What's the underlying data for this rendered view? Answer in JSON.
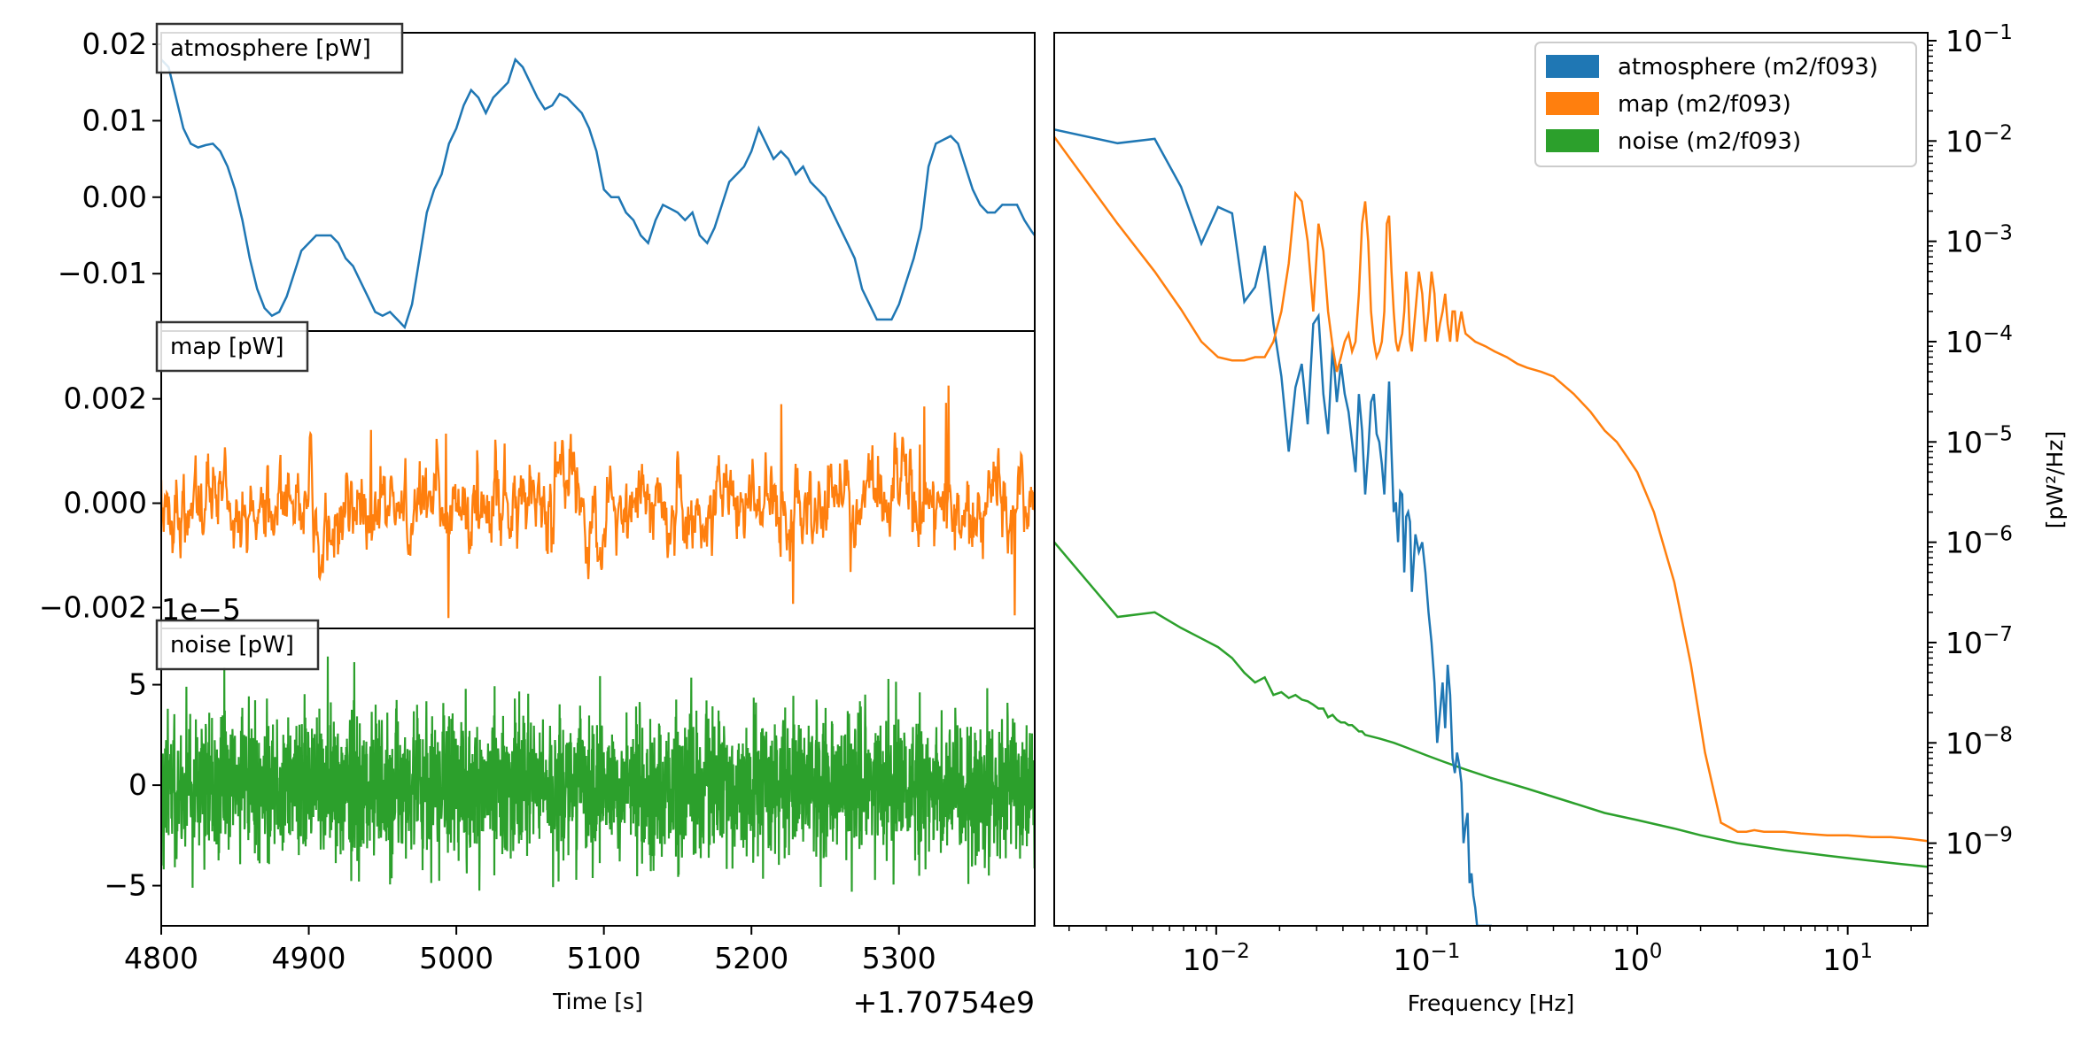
{
  "chart_data": [
    {
      "type": "line",
      "panel": "atmosphere",
      "label_box": "atmosphere [pW]",
      "color": "#1f77b4",
      "xlim": [
        4800,
        5392
      ],
      "ylim": [
        -0.0175,
        0.0215
      ],
      "yticks": [
        {
          "v": 0.02,
          "t": "0.02"
        },
        {
          "v": 0.01,
          "t": "0.01"
        },
        {
          "v": 0.0,
          "t": "0.00"
        },
        {
          "v": -0.01,
          "t": "−0.01"
        }
      ],
      "x": [
        4800,
        4805,
        4810,
        4815,
        4820,
        4825,
        4830,
        4835,
        4840,
        4845,
        4850,
        4855,
        4860,
        4865,
        4870,
        4875,
        4880,
        4885,
        4890,
        4895,
        4900,
        4905,
        4910,
        4915,
        4920,
        4925,
        4930,
        4935,
        4940,
        4945,
        4950,
        4955,
        4960,
        4965,
        4970,
        4975,
        4980,
        4985,
        4990,
        4995,
        5000,
        5005,
        5010,
        5015,
        5020,
        5025,
        5030,
        5035,
        5040,
        5045,
        5050,
        5055,
        5060,
        5065,
        5070,
        5075,
        5080,
        5085,
        5090,
        5095,
        5100,
        5105,
        5110,
        5115,
        5120,
        5125,
        5130,
        5135,
        5140,
        5145,
        5150,
        5155,
        5160,
        5165,
        5170,
        5175,
        5180,
        5185,
        5190,
        5195,
        5200,
        5205,
        5210,
        5215,
        5220,
        5225,
        5230,
        5235,
        5240,
        5245,
        5250,
        5255,
        5260,
        5265,
        5270,
        5275,
        5280,
        5285,
        5290,
        5295,
        5300,
        5305,
        5310,
        5315,
        5320,
        5325,
        5330,
        5335,
        5340,
        5345,
        5350,
        5355,
        5360,
        5365,
        5370,
        5375,
        5380,
        5385,
        5390,
        5392
      ],
      "values": [
        0.018,
        0.017,
        0.013,
        0.009,
        0.007,
        0.0065,
        0.0068,
        0.007,
        0.006,
        0.004,
        0.001,
        -0.003,
        -0.008,
        -0.012,
        -0.0145,
        -0.0155,
        -0.015,
        -0.013,
        -0.01,
        -0.007,
        -0.006,
        -0.005,
        -0.005,
        -0.005,
        -0.006,
        -0.008,
        -0.009,
        -0.011,
        -0.013,
        -0.015,
        -0.0155,
        -0.015,
        -0.016,
        -0.017,
        -0.014,
        -0.008,
        -0.002,
        0.001,
        0.003,
        0.007,
        0.009,
        0.012,
        0.014,
        0.013,
        0.011,
        0.013,
        0.014,
        0.015,
        0.018,
        0.017,
        0.015,
        0.013,
        0.0115,
        0.012,
        0.0135,
        0.013,
        0.012,
        0.011,
        0.009,
        0.006,
        0.001,
        0.0,
        0.0,
        -0.002,
        -0.003,
        -0.005,
        -0.006,
        -0.003,
        -0.001,
        -0.0015,
        -0.002,
        -0.003,
        -0.002,
        -0.005,
        -0.006,
        -0.004,
        -0.001,
        0.002,
        0.003,
        0.004,
        0.006,
        0.009,
        0.007,
        0.005,
        0.006,
        0.005,
        0.003,
        0.004,
        0.002,
        0.001,
        0.0,
        -0.002,
        -0.004,
        -0.006,
        -0.008,
        -0.012,
        -0.014,
        -0.016,
        -0.016,
        -0.016,
        -0.014,
        -0.011,
        -0.008,
        -0.004,
        0.004,
        0.007,
        0.0075,
        0.008,
        0.007,
        0.004,
        0.001,
        -0.001,
        -0.002,
        -0.002,
        -0.001,
        -0.001,
        -0.001,
        -0.003,
        -0.0045,
        -0.005
      ]
    },
    {
      "type": "line",
      "panel": "map",
      "label_box": "map [pW]",
      "color": "#ff7f0e",
      "xlim": [
        4800,
        5392
      ],
      "ylim": [
        -0.0024,
        0.0033
      ],
      "yticks": [
        {
          "v": 0.002,
          "t": "0.002"
        },
        {
          "v": 0.0,
          "t": "0.000"
        },
        {
          "v": -0.002,
          "t": "−0.002"
        }
      ],
      "signal_amplitude": 0.0009,
      "peak_range": [
        -0.0022,
        0.0032
      ]
    },
    {
      "type": "line",
      "panel": "noise",
      "label_box": "noise [pW]",
      "color": "#2ca02c",
      "offset_text": "1e−5",
      "xlim": [
        4800,
        5392
      ],
      "ylim": [
        -7.0,
        7.8
      ],
      "yticks": [
        {
          "v": 5,
          "t": "5"
        },
        {
          "v": 0,
          "t": "0"
        },
        {
          "v": -5,
          "t": "−5"
        }
      ],
      "signal_amplitude": 1.8,
      "peak_range": [
        -6.2,
        6.4
      ]
    }
  ],
  "time_axis": {
    "xlabel": "Time [s]",
    "offset_text": "+1.70754e9",
    "xticks": [
      {
        "v": 4800,
        "t": "4800"
      },
      {
        "v": 4900,
        "t": "4900"
      },
      {
        "v": 5000,
        "t": "5000"
      },
      {
        "v": 5100,
        "t": "5100"
      },
      {
        "v": 5200,
        "t": "5200"
      },
      {
        "v": 5300,
        "t": "5300"
      }
    ]
  },
  "psd": {
    "type": "line",
    "xscale": "log",
    "yscale": "log",
    "xlabel": "Frequency [Hz]",
    "ylabel": "[pW²/Hz]",
    "xlim": [
      0.0017,
      24
    ],
    "ylim": [
      1.5e-10,
      0.12
    ],
    "legend_location": "upper right",
    "xticks": [
      {
        "v": 0.01,
        "base": "10",
        "exp": "−2"
      },
      {
        "v": 0.1,
        "base": "10",
        "exp": "−1"
      },
      {
        "v": 1,
        "base": "10",
        "exp": "0"
      },
      {
        "v": 10,
        "base": "10",
        "exp": "1"
      }
    ],
    "yticks": [
      {
        "v": 0.1,
        "base": "10",
        "exp": "−1"
      },
      {
        "v": 0.01,
        "base": "10",
        "exp": "−2"
      },
      {
        "v": 0.001,
        "base": "10",
        "exp": "−3"
      },
      {
        "v": 0.0001,
        "base": "10",
        "exp": "−4"
      },
      {
        "v": 1e-05,
        "base": "10",
        "exp": "−5"
      },
      {
        "v": 1e-06,
        "base": "10",
        "exp": "−6"
      },
      {
        "v": 1e-07,
        "base": "10",
        "exp": "−7"
      },
      {
        "v": 1e-08,
        "base": "10",
        "exp": "−8"
      },
      {
        "v": 1e-09,
        "base": "10",
        "exp": "−9"
      }
    ],
    "series": [
      {
        "name": "atmosphere (m2/f093)",
        "color": "#1f77b4",
        "x": [
          0.0017,
          0.0034,
          0.0051,
          0.0068,
          0.0085,
          0.0102,
          0.0119,
          0.0136,
          0.0153,
          0.017,
          0.0187,
          0.0204,
          0.0221,
          0.0238,
          0.0255,
          0.0272,
          0.0289,
          0.0306,
          0.0323,
          0.034,
          0.0357,
          0.0374,
          0.0391,
          0.0408,
          0.0425,
          0.0442,
          0.0459,
          0.0476,
          0.0493,
          0.051,
          0.0527,
          0.0544,
          0.0561,
          0.0578,
          0.0595,
          0.0612,
          0.0629,
          0.0646,
          0.0663,
          0.068,
          0.0697,
          0.0714,
          0.0731,
          0.0748,
          0.0765,
          0.0782,
          0.0799,
          0.0816,
          0.0833,
          0.085,
          0.0884,
          0.0918,
          0.0952,
          0.0986,
          0.102,
          0.1054,
          0.1088,
          0.1122,
          0.1156,
          0.119,
          0.1224,
          0.1258,
          0.1292,
          0.1326,
          0.136,
          0.1394,
          0.1428,
          0.1462,
          0.1496,
          0.153,
          0.1564,
          0.1598,
          0.1632,
          0.1666,
          0.17,
          0.1734,
          0.1768,
          0.1802,
          0.1836,
          0.187,
          0.1904,
          0.1938,
          0.1972,
          0.2006,
          0.204
        ],
        "y": [
          0.013,
          0.0095,
          0.0105,
          0.0035,
          0.00095,
          0.0022,
          0.0019,
          0.00025,
          0.00035,
          0.0009,
          0.00015,
          4.5e-05,
          8e-06,
          3.5e-05,
          6e-05,
          1.5e-05,
          0.00015,
          0.00018,
          3e-05,
          1.2e-05,
          9e-05,
          2.5e-05,
          6e-05,
          3e-05,
          2e-05,
          1e-05,
          5e-06,
          3e-05,
          1.3e-05,
          3e-06,
          8e-06,
          2.5e-05,
          3e-05,
          1.2e-05,
          1e-05,
          6e-06,
          3e-06,
          1.2e-05,
          4e-05,
          8e-06,
          2e-06,
          2.5e-06,
          1e-06,
          3.2e-06,
          3e-06,
          5e-07,
          1.8e-06,
          2e-06,
          1.6e-06,
          3.2e-07,
          1.2e-06,
          8e-07,
          1e-06,
          5e-07,
          2e-07,
          1e-07,
          4e-08,
          1e-08,
          2e-08,
          4e-08,
          1.4e-08,
          6e-08,
          3e-08,
          7e-09,
          5e-09,
          8e-09,
          6e-09,
          4e-09,
          1e-09,
          1.5e-09,
          2e-09,
          4e-10,
          5e-10,
          3e-10,
          2.3e-10,
          1.5e-10,
          1.5e-10,
          1.5e-10,
          1.5e-10,
          1.5e-10,
          1.5e-10,
          1.5e-10,
          1.5e-10,
          1.5e-10,
          1.5e-10
        ]
      },
      {
        "name": "map (m2/f093)",
        "color": "#ff7f0e",
        "x": [
          0.0017,
          0.0034,
          0.0051,
          0.0068,
          0.0085,
          0.0102,
          0.0119,
          0.0136,
          0.0153,
          0.017,
          0.0187,
          0.0204,
          0.0221,
          0.0238,
          0.0255,
          0.0272,
          0.0289,
          0.0306,
          0.0323,
          0.034,
          0.0357,
          0.0374,
          0.0391,
          0.0408,
          0.0425,
          0.0442,
          0.0459,
          0.0476,
          0.0493,
          0.051,
          0.0527,
          0.0544,
          0.0561,
          0.0578,
          0.0595,
          0.0612,
          0.0629,
          0.0646,
          0.0663,
          0.068,
          0.0697,
          0.0714,
          0.0731,
          0.0748,
          0.0765,
          0.0782,
          0.0799,
          0.0816,
          0.0833,
          0.085,
          0.0884,
          0.0918,
          0.0952,
          0.0986,
          0.102,
          0.1054,
          0.1088,
          0.1122,
          0.1156,
          0.119,
          0.1224,
          0.1258,
          0.1292,
          0.1326,
          0.136,
          0.1394,
          0.1428,
          0.1462,
          0.1496,
          0.153,
          0.17,
          0.19,
          0.21,
          0.24,
          0.27,
          0.3,
          0.35,
          0.4,
          0.5,
          0.6,
          0.7,
          0.8,
          0.9,
          1.0,
          1.2,
          1.5,
          1.8,
          2.1,
          2.5,
          3.0,
          3.3,
          3.6,
          4.0,
          5.0,
          6.0,
          8.0,
          10.0,
          13.0,
          16.0,
          20.0,
          24.0
        ],
        "y": [
          0.011,
          0.0015,
          0.0005,
          0.00021,
          0.0001,
          7e-05,
          6.5e-05,
          6.5e-05,
          7e-05,
          7e-05,
          0.0001,
          0.0002,
          0.0006,
          0.003,
          0.0025,
          0.001,
          0.0002,
          0.0015,
          0.0008,
          0.0002,
          9e-05,
          5e-05,
          7e-05,
          0.0001,
          0.00012,
          8e-05,
          0.0001,
          0.0003,
          0.0015,
          0.0025,
          0.001,
          0.0002,
          0.0001,
          7e-05,
          8e-05,
          0.0001,
          0.0002,
          0.0015,
          0.0018,
          0.0005,
          0.0002,
          0.0001,
          8e-05,
          0.0001,
          0.00012,
          0.0002,
          0.0005,
          0.0003,
          0.0001,
          8e-05,
          0.0002,
          0.0005,
          0.0003,
          0.0001,
          0.0002,
          0.0005,
          0.0003,
          0.0001,
          0.00015,
          0.0002,
          0.0003,
          0.00015,
          0.0001,
          0.0002,
          0.0002,
          0.0001,
          0.00015,
          0.0002,
          0.00015,
          0.00012,
          0.0001,
          9e-05,
          8e-05,
          7e-05,
          6e-05,
          5.5e-05,
          5e-05,
          4.5e-05,
          3e-05,
          2e-05,
          1.3e-05,
          1e-05,
          7e-06,
          5e-06,
          2e-06,
          4e-07,
          6e-08,
          8e-09,
          1.6e-09,
          1.3e-09,
          1.3e-09,
          1.35e-09,
          1.3e-09,
          1.3e-09,
          1.25e-09,
          1.2e-09,
          1.2e-09,
          1.15e-09,
          1.15e-09,
          1.1e-09,
          1.05e-09
        ]
      },
      {
        "name": "noise (m2/f093)",
        "color": "#2ca02c",
        "x": [
          0.0017,
          0.0034,
          0.0051,
          0.0068,
          0.0085,
          0.0102,
          0.0119,
          0.0136,
          0.0153,
          0.017,
          0.0187,
          0.0204,
          0.0221,
          0.0238,
          0.0255,
          0.0272,
          0.0289,
          0.0306,
          0.0323,
          0.034,
          0.0357,
          0.0374,
          0.0391,
          0.0408,
          0.0425,
          0.0442,
          0.0459,
          0.0476,
          0.0493,
          0.051,
          0.06,
          0.07,
          0.08,
          0.1,
          0.12,
          0.15,
          0.2,
          0.3,
          0.5,
          0.7,
          1.0,
          1.5,
          2.0,
          3.0,
          5.0,
          8.0,
          12.0,
          18.0,
          24.0
        ],
        "y": [
          1e-06,
          1.8e-07,
          2e-07,
          1.4e-07,
          1.1e-07,
          9e-08,
          7e-08,
          5e-08,
          4e-08,
          4.5e-08,
          3e-08,
          3.2e-08,
          2.8e-08,
          3e-08,
          2.7e-08,
          2.6e-08,
          2.4e-08,
          2.2e-08,
          2.2e-08,
          1.8e-08,
          1.9e-08,
          1.7e-08,
          1.6e-08,
          1.6e-08,
          1.5e-08,
          1.5e-08,
          1.4e-08,
          1.3e-08,
          1.3e-08,
          1.2e-08,
          1.1e-08,
          1e-08,
          9e-09,
          7.5e-09,
          6.5e-09,
          5.5e-09,
          4.5e-09,
          3.5e-09,
          2.5e-09,
          2e-09,
          1.7e-09,
          1.4e-09,
          1.2e-09,
          1e-09,
          8.5e-10,
          7.5e-10,
          6.8e-10,
          6.2e-10,
          5.8e-10
        ]
      }
    ]
  }
}
